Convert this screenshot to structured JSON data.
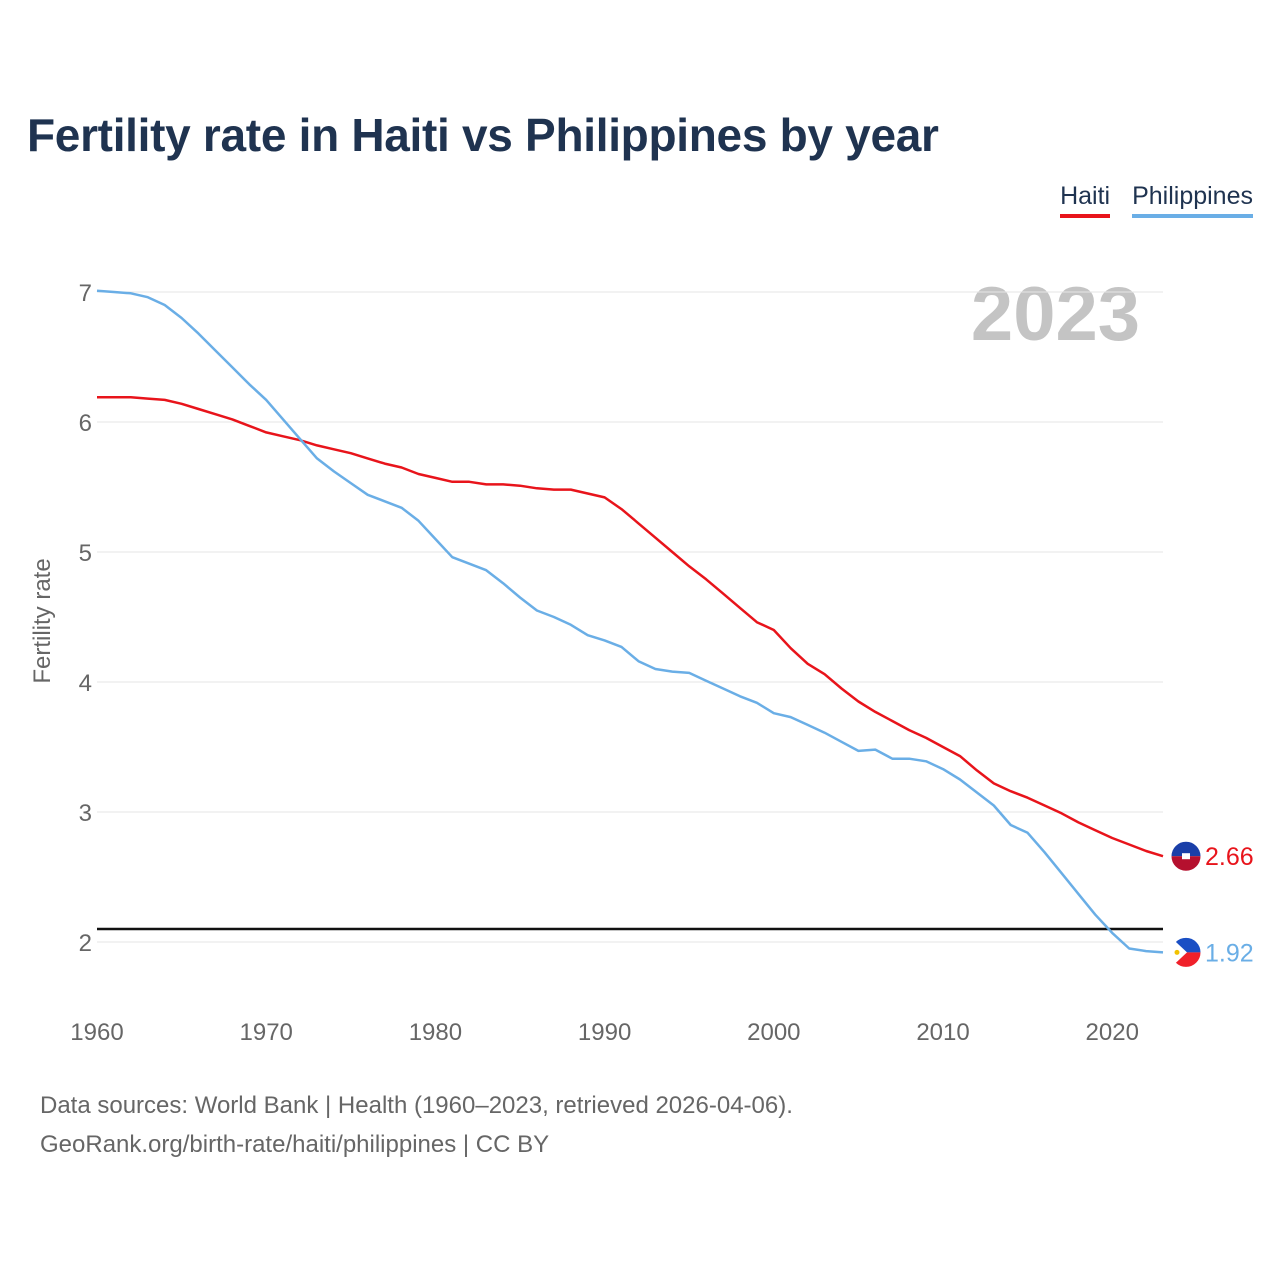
{
  "title": "Fertility rate in Haiti vs Philippines by year",
  "legend": [
    {
      "name": "Haiti",
      "color": "#e8141b"
    },
    {
      "name": "Philippines",
      "color": "#6aaee6"
    }
  ],
  "footer": {
    "line1": "Data sources: World Bank | Health (1960–2023, retrieved 2026-04-06).",
    "line2": "GeoRank.org/birth-rate/haiti/philippines | CC BY"
  },
  "chart_data": {
    "type": "line",
    "title": "Fertility rate in Haiti vs Philippines by year",
    "year_label": "2023",
    "xlabel": "",
    "ylabel": "Fertility rate",
    "xlim": [
      1960,
      2023
    ],
    "ylim": [
      1.5,
      7.1
    ],
    "x_ticks": [
      1960,
      1970,
      1980,
      1990,
      2000,
      2010,
      2020
    ],
    "y_ticks": [
      2,
      3,
      4,
      5,
      6,
      7
    ],
    "reference_line": 2.1,
    "grid": true,
    "legend_position": "top-right",
    "x": [
      1960,
      1961,
      1962,
      1963,
      1964,
      1965,
      1966,
      1967,
      1968,
      1969,
      1970,
      1971,
      1972,
      1973,
      1974,
      1975,
      1976,
      1977,
      1978,
      1979,
      1980,
      1981,
      1982,
      1983,
      1984,
      1985,
      1986,
      1987,
      1988,
      1989,
      1990,
      1991,
      1992,
      1993,
      1994,
      1995,
      1996,
      1997,
      1998,
      1999,
      2000,
      2001,
      2002,
      2003,
      2004,
      2005,
      2006,
      2007,
      2008,
      2009,
      2010,
      2011,
      2012,
      2013,
      2014,
      2015,
      2016,
      2017,
      2018,
      2019,
      2020,
      2021,
      2022,
      2023
    ],
    "series": [
      {
        "name": "Haiti",
        "color": "#e8141b",
        "end_label": "2.66",
        "values": [
          6.19,
          6.19,
          6.19,
          6.18,
          6.17,
          6.14,
          6.1,
          6.06,
          6.02,
          5.97,
          5.92,
          5.89,
          5.86,
          5.82,
          5.79,
          5.76,
          5.72,
          5.68,
          5.65,
          5.6,
          5.57,
          5.54,
          5.54,
          5.52,
          5.52,
          5.51,
          5.49,
          5.48,
          5.48,
          5.45,
          5.42,
          5.33,
          5.22,
          5.11,
          5.0,
          4.89,
          4.79,
          4.68,
          4.57,
          4.46,
          4.4,
          4.26,
          4.14,
          4.06,
          3.95,
          3.85,
          3.77,
          3.7,
          3.63,
          3.57,
          3.5,
          3.43,
          3.32,
          3.22,
          3.16,
          3.11,
          3.05,
          2.99,
          2.92,
          2.86,
          2.8,
          2.75,
          2.7,
          2.66
        ]
      },
      {
        "name": "Philippines",
        "color": "#6aaee6",
        "end_label": "1.92",
        "values": [
          7.01,
          7.0,
          6.99,
          6.96,
          6.9,
          6.8,
          6.68,
          6.55,
          6.42,
          6.29,
          6.17,
          6.02,
          5.87,
          5.72,
          5.62,
          5.53,
          5.44,
          5.39,
          5.34,
          5.24,
          5.1,
          4.96,
          4.91,
          4.86,
          4.76,
          4.65,
          4.55,
          4.5,
          4.44,
          4.36,
          4.32,
          4.27,
          4.16,
          4.1,
          4.08,
          4.07,
          4.01,
          3.95,
          3.89,
          3.84,
          3.76,
          3.73,
          3.67,
          3.61,
          3.54,
          3.47,
          3.48,
          3.41,
          3.41,
          3.39,
          3.33,
          3.25,
          3.15,
          3.05,
          2.9,
          2.84,
          2.69,
          2.53,
          2.37,
          2.21,
          2.07,
          1.95,
          1.93,
          1.92
        ]
      }
    ]
  }
}
